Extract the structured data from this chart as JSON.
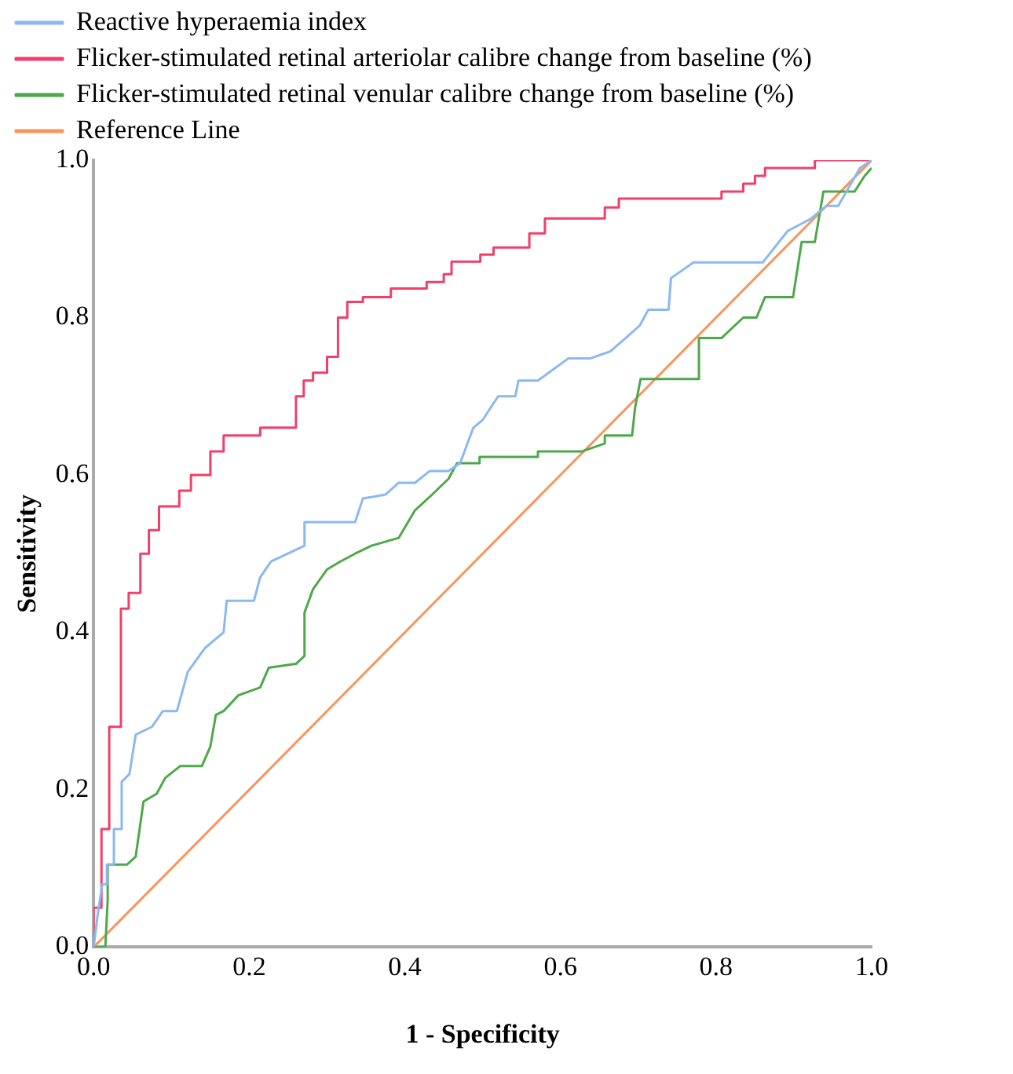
{
  "chart_data": {
    "type": "line",
    "xlabel": "1 - Specificity",
    "ylabel": "Sensitivity",
    "xlim": [
      0,
      1
    ],
    "ylim": [
      0,
      1
    ],
    "xticks": [
      {
        "value": 0,
        "label": "0.0"
      },
      {
        "value": 0.2,
        "label": "0.2"
      },
      {
        "value": 0.4,
        "label": "0.4"
      },
      {
        "value": 0.6,
        "label": "0.6"
      },
      {
        "value": 0.8,
        "label": "0.8"
      },
      {
        "value": 1,
        "label": "1.0"
      }
    ],
    "yticks": [
      {
        "value": 0,
        "label": "0.0"
      },
      {
        "value": 0.2,
        "label": "0.2"
      },
      {
        "value": 0.4,
        "label": "0.4"
      },
      {
        "value": 0.6,
        "label": "0.6"
      },
      {
        "value": 0.8,
        "label": "0.8"
      },
      {
        "value": 1,
        "label": "1.0"
      }
    ],
    "grid": false,
    "legend": "top left",
    "marker": "none",
    "line_style": "solid",
    "series": [
      {
        "name": "Reactive hyperaemia index",
        "color": "#8ab9f1",
        "x": [
          0,
          0.005,
          0.011,
          0.017,
          0.017,
          0.026,
          0.026,
          0.036,
          0.036,
          0.046,
          0.054,
          0.075,
          0.089,
          0.107,
          0.121,
          0.143,
          0.167,
          0.171,
          0.206,
          0.214,
          0.228,
          0.271,
          0.271,
          0.336,
          0.346,
          0.375,
          0.392,
          0.413,
          0.432,
          0.456,
          0.471,
          0.488,
          0.5,
          0.52,
          0.542,
          0.546,
          0.571,
          0.61,
          0.638,
          0.664,
          0.685,
          0.702,
          0.713,
          0.739,
          0.742,
          0.771,
          0.86,
          0.892,
          0.921,
          0.942,
          0.957,
          0.985,
          1
        ],
        "values": [
          0,
          0.04,
          0.08,
          0.08,
          0.105,
          0.105,
          0.15,
          0.15,
          0.21,
          0.22,
          0.27,
          0.28,
          0.3,
          0.3,
          0.35,
          0.38,
          0.4,
          0.44,
          0.44,
          0.47,
          0.49,
          0.51,
          0.54,
          0.54,
          0.57,
          0.575,
          0.59,
          0.59,
          0.605,
          0.605,
          0.615,
          0.66,
          0.67,
          0.7,
          0.7,
          0.72,
          0.72,
          0.748,
          0.748,
          0.757,
          0.775,
          0.79,
          0.81,
          0.81,
          0.85,
          0.87,
          0.87,
          0.91,
          0.925,
          0.942,
          0.942,
          0.99,
          1
        ]
      },
      {
        "name": "Flicker-stimulated retinal arteriolar calibre change from baseline (%)",
        "color": "#f0406a",
        "x": [
          0,
          0,
          0.01,
          0.01,
          0.02,
          0.02,
          0.035,
          0.035,
          0.045,
          0.045,
          0.06,
          0.06,
          0.071,
          0.071,
          0.084,
          0.084,
          0.11,
          0.11,
          0.125,
          0.125,
          0.15,
          0.15,
          0.167,
          0.167,
          0.214,
          0.214,
          0.26,
          0.26,
          0.27,
          0.27,
          0.282,
          0.282,
          0.3,
          0.3,
          0.314,
          0.314,
          0.326,
          0.326,
          0.346,
          0.346,
          0.382,
          0.382,
          0.428,
          0.428,
          0.45,
          0.45,
          0.46,
          0.46,
          0.497,
          0.497,
          0.514,
          0.514,
          0.56,
          0.56,
          0.58,
          0.58,
          0.657,
          0.657,
          0.675,
          0.675,
          0.807,
          0.807,
          0.835,
          0.835,
          0.85,
          0.85,
          0.863,
          0.863,
          0.927,
          0.927,
          1
        ],
        "values": [
          0,
          0.05,
          0.05,
          0.15,
          0.15,
          0.28,
          0.28,
          0.43,
          0.43,
          0.45,
          0.45,
          0.5,
          0.5,
          0.53,
          0.53,
          0.56,
          0.56,
          0.58,
          0.58,
          0.6,
          0.6,
          0.63,
          0.63,
          0.65,
          0.65,
          0.66,
          0.66,
          0.7,
          0.7,
          0.72,
          0.72,
          0.73,
          0.73,
          0.75,
          0.75,
          0.8,
          0.8,
          0.82,
          0.82,
          0.826,
          0.826,
          0.837,
          0.837,
          0.845,
          0.845,
          0.855,
          0.855,
          0.871,
          0.871,
          0.88,
          0.88,
          0.889,
          0.889,
          0.907,
          0.907,
          0.926,
          0.926,
          0.94,
          0.94,
          0.951,
          0.951,
          0.96,
          0.96,
          0.97,
          0.97,
          0.98,
          0.98,
          0.99,
          0.99,
          1,
          1
        ]
      },
      {
        "name": "Flicker-stimulated retinal venular calibre change from baseline (%)",
        "color": "#4ea84a",
        "x": [
          0,
          0.015,
          0.018,
          0.018,
          0.043,
          0.054,
          0.064,
          0.081,
          0.092,
          0.111,
          0.139,
          0.15,
          0.157,
          0.167,
          0.186,
          0.214,
          0.225,
          0.26,
          0.271,
          0.271,
          0.282,
          0.3,
          0.317,
          0.336,
          0.357,
          0.392,
          0.413,
          0.435,
          0.456,
          0.467,
          0.496,
          0.496,
          0.571,
          0.571,
          0.628,
          0.657,
          0.657,
          0.692,
          0.696,
          0.703,
          0.778,
          0.778,
          0.807,
          0.835,
          0.852,
          0.863,
          0.899,
          0.91,
          0.927,
          0.938,
          0.978,
          0.991,
          1
        ],
        "values": [
          0,
          0,
          0.06,
          0.105,
          0.105,
          0.115,
          0.185,
          0.195,
          0.215,
          0.23,
          0.23,
          0.255,
          0.295,
          0.3,
          0.32,
          0.33,
          0.355,
          0.36,
          0.37,
          0.425,
          0.455,
          0.48,
          0.49,
          0.5,
          0.51,
          0.52,
          0.555,
          0.575,
          0.595,
          0.615,
          0.615,
          0.623,
          0.623,
          0.63,
          0.63,
          0.64,
          0.65,
          0.65,
          0.686,
          0.722,
          0.722,
          0.774,
          0.774,
          0.8,
          0.8,
          0.826,
          0.826,
          0.896,
          0.896,
          0.96,
          0.96,
          0.98,
          0.99
        ]
      },
      {
        "name": "Reference Line",
        "color": "#f7955e",
        "x": [
          0,
          1
        ],
        "values": [
          0,
          1
        ]
      }
    ]
  }
}
